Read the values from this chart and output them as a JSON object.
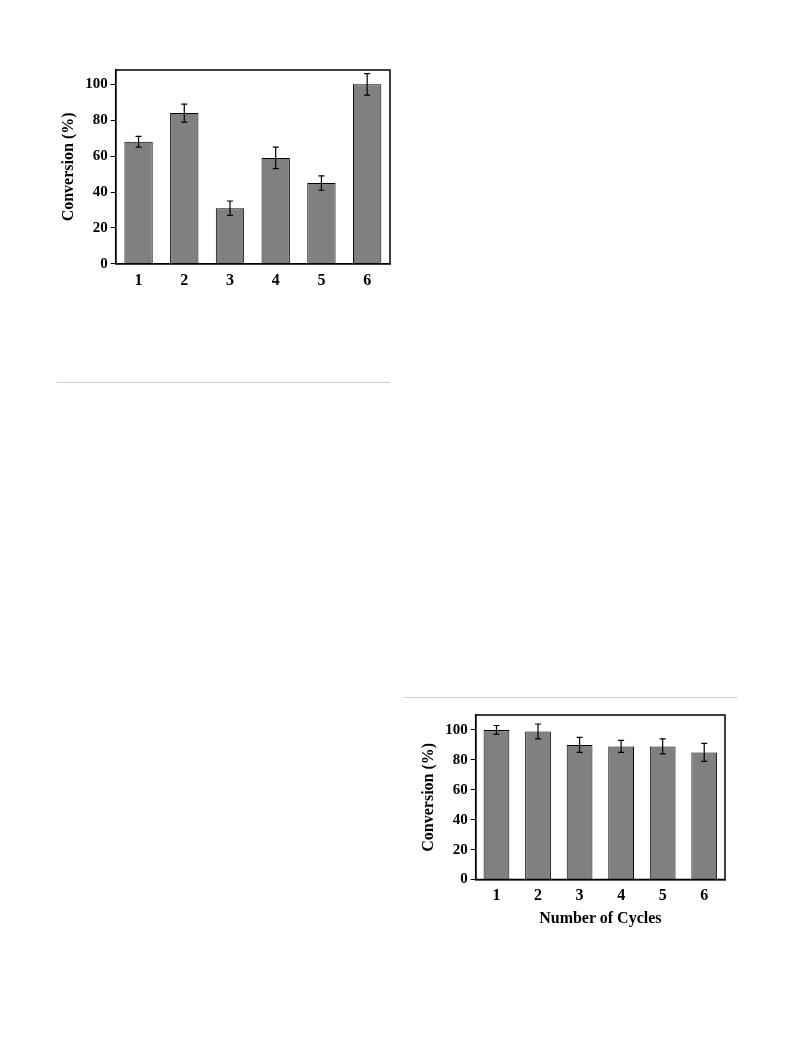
{
  "chart_data": [
    {
      "type": "bar",
      "ylabel": "Conversion (%)",
      "categories": [
        "1",
        "2",
        "3",
        "4",
        "5",
        "6"
      ],
      "values": [
        68,
        84,
        31,
        59,
        45,
        100
      ],
      "errors": [
        3,
        5,
        4,
        6,
        4,
        6
      ],
      "color": "#808080",
      "ylim": [
        0,
        108
      ],
      "yticks": [
        0,
        20,
        40,
        60,
        80,
        100
      ],
      "grid": false,
      "legend": false
    },
    {
      "type": "bar",
      "xlabel": "Number of Cycles",
      "ylabel": "Conversion (%)",
      "categories": [
        "1",
        "2",
        "3",
        "4",
        "5",
        "6"
      ],
      "values": [
        100,
        99,
        90,
        89,
        89,
        85
      ],
      "errors": [
        3,
        5,
        5,
        4,
        5,
        6
      ],
      "color": "#808080",
      "ylim": [
        0,
        110
      ],
      "yticks": [
        0,
        20,
        40,
        60,
        80,
        100
      ],
      "grid": false,
      "legend": false
    }
  ]
}
